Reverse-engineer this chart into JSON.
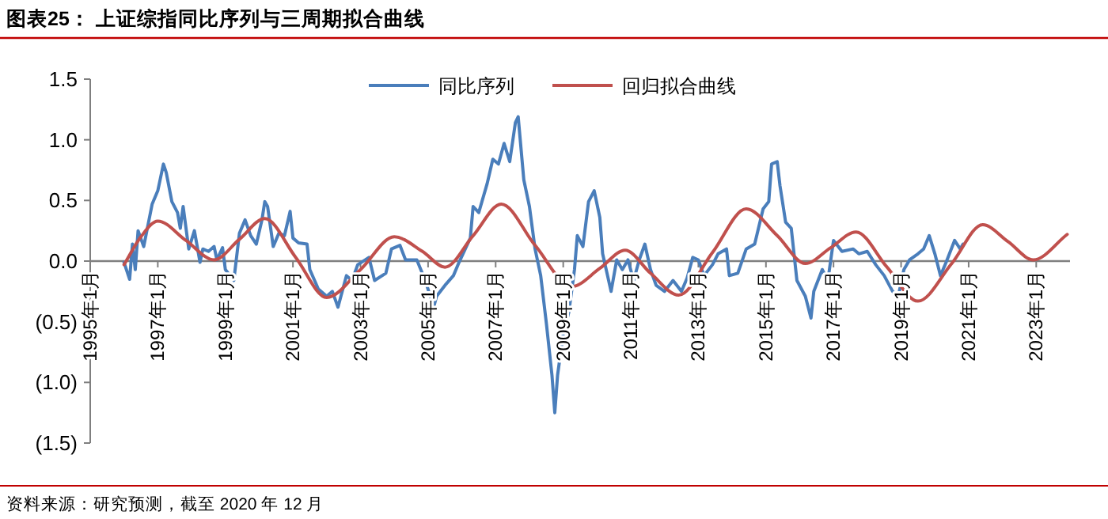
{
  "chart_data": {
    "type": "line",
    "title": "图表25：  上证综指同比序列与三周期拟合曲线",
    "annotations": [
      "资料来源：研究预测，截至 2020 年 12 月"
    ],
    "legend": "top",
    "xlim": [
      "1995-01",
      "2024-01"
    ],
    "xticks": [
      {
        "value": "1995-01",
        "label": "1995年1月"
      },
      {
        "value": "1997-01",
        "label": "1997年1月"
      },
      {
        "value": "1999-01",
        "label": "1999年1月"
      },
      {
        "value": "2001-01",
        "label": "2001年1月"
      },
      {
        "value": "2003-01",
        "label": "2003年1月"
      },
      {
        "value": "2005-01",
        "label": "2005年1月"
      },
      {
        "value": "2007-01",
        "label": "2007年1月"
      },
      {
        "value": "2009-01",
        "label": "2009年1月"
      },
      {
        "value": "2011-01",
        "label": "2011年1月"
      },
      {
        "value": "2013-01",
        "label": "2013年1月"
      },
      {
        "value": "2015-01",
        "label": "2015年1月"
      },
      {
        "value": "2017-01",
        "label": "2017年1月"
      },
      {
        "value": "2019-01",
        "label": "2019年1月"
      },
      {
        "value": "2021-01",
        "label": "2021年1月"
      },
      {
        "value": "2023-01",
        "label": "2023年1月"
      }
    ],
    "ylim": [
      -1.5,
      1.5
    ],
    "yticks": [
      {
        "value": -1.5,
        "label": "(1.5)"
      },
      {
        "value": -1.0,
        "label": "(1.0)"
      },
      {
        "value": -0.5,
        "label": "(0.5)"
      },
      {
        "value": 0,
        "label": "0.0"
      },
      {
        "value": 0.5,
        "label": "0.5"
      },
      {
        "value": 1.0,
        "label": "1.0"
      },
      {
        "value": 1.5,
        "label": "1.5"
      }
    ],
    "series": [
      {
        "name": "同比序列",
        "color": "#4a7ebb",
        "x": [
          "1996-01",
          "1996-03",
          "1996-04",
          "1996-05",
          "1996-06",
          "1996-08",
          "1996-11",
          "1997-01",
          "1997-03",
          "1997-04",
          "1997-06",
          "1997-08",
          "1997-09",
          "1997-10",
          "1997-12",
          "1998-02",
          "1998-04",
          "1998-05",
          "1998-07",
          "1998-09",
          "1998-10",
          "1998-12",
          "1999-01",
          "1999-04",
          "1999-06",
          "1999-08",
          "1999-10",
          "1999-12",
          "2000-02",
          "2000-03",
          "2000-04",
          "2000-06",
          "2000-08",
          "2000-10",
          "2000-12",
          "2001-01",
          "2001-03",
          "2001-06",
          "2001-07",
          "2001-10",
          "2002-01",
          "2002-03",
          "2002-05",
          "2002-08",
          "2002-10",
          "2002-12",
          "2003-04",
          "2003-06",
          "2003-10",
          "2003-12",
          "2004-03",
          "2004-05",
          "2004-09",
          "2004-12",
          "2005-03",
          "2005-04",
          "2005-07",
          "2005-10",
          "2005-12",
          "2006-04",
          "2006-05",
          "2006-07",
          "2006-10",
          "2006-12",
          "2007-02",
          "2007-04",
          "2007-06",
          "2007-08",
          "2007-09",
          "2007-11",
          "2008-01",
          "2008-03",
          "2008-05",
          "2008-07",
          "2008-09",
          "2008-10",
          "2008-11",
          "2009-01",
          "2009-03",
          "2009-05",
          "2009-06",
          "2009-08",
          "2009-10",
          "2009-12",
          "2010-02",
          "2010-03",
          "2010-06",
          "2010-08",
          "2010-10",
          "2010-12",
          "2011-02",
          "2011-04",
          "2011-06",
          "2011-08",
          "2011-10",
          "2012-01",
          "2012-04",
          "2012-07",
          "2012-09",
          "2012-11",
          "2013-01",
          "2013-03",
          "2013-06",
          "2013-08",
          "2013-11",
          "2013-12",
          "2014-03",
          "2014-06",
          "2014-09",
          "2014-12",
          "2015-02",
          "2015-03",
          "2015-05",
          "2015-06",
          "2015-08",
          "2015-10",
          "2015-12",
          "2016-03",
          "2016-05",
          "2016-06",
          "2016-09",
          "2016-11",
          "2017-01",
          "2017-04",
          "2017-08",
          "2017-10",
          "2018-01",
          "2018-04",
          "2018-07",
          "2018-10",
          "2018-12",
          "2019-02",
          "2019-04",
          "2019-07",
          "2019-09",
          "2019-11",
          "2020-01",
          "2020-03",
          "2020-05",
          "2020-08",
          "2020-10",
          "2020-11"
        ],
        "values": [
          -0.01,
          -0.15,
          0.14,
          -0.07,
          0.25,
          0.12,
          0.47,
          0.58,
          0.8,
          0.73,
          0.49,
          0.4,
          0.27,
          0.45,
          0.1,
          0.25,
          -0.01,
          0.1,
          0.08,
          0.12,
          0.01,
          0.11,
          -0.07,
          -0.16,
          0.23,
          0.34,
          0.21,
          0.14,
          0.34,
          0.49,
          0.45,
          0.12,
          0.23,
          0.21,
          0.41,
          0.19,
          0.15,
          0.14,
          -0.07,
          -0.23,
          -0.29,
          -0.25,
          -0.38,
          -0.12,
          -0.16,
          -0.03,
          0.03,
          -0.16,
          -0.1,
          0.1,
          0.13,
          0.01,
          0.01,
          -0.16,
          -0.38,
          -0.29,
          -0.2,
          -0.12,
          -0.01,
          0.19,
          0.45,
          0.4,
          0.64,
          0.84,
          0.8,
          0.97,
          0.82,
          1.14,
          1.19,
          0.67,
          0.45,
          0.1,
          -0.12,
          -0.51,
          -0.94,
          -1.25,
          -0.94,
          -0.6,
          -0.42,
          -0.07,
          0.21,
          0.12,
          0.49,
          0.58,
          0.36,
          0.06,
          -0.25,
          0.01,
          -0.07,
          0.01,
          -0.16,
          0.01,
          0.14,
          -0.07,
          -0.2,
          -0.25,
          -0.16,
          -0.25,
          -0.14,
          0.03,
          0.01,
          -0.12,
          -0.03,
          0.06,
          0.1,
          -0.12,
          -0.1,
          0.1,
          0.14,
          0.43,
          0.49,
          0.8,
          0.82,
          0.62,
          0.32,
          0.27,
          -0.16,
          -0.29,
          -0.47,
          -0.25,
          -0.07,
          -0.16,
          0.17,
          0.08,
          0.1,
          0.06,
          0.08,
          -0.03,
          -0.12,
          -0.25,
          -0.29,
          -0.07,
          0.01,
          0.06,
          0.1,
          0.21,
          0.06,
          -0.12,
          -0.01,
          0.17,
          0.1,
          0.14
        ]
      },
      {
        "name": "回归拟合曲线",
        "color": "#c0504d",
        "x": [
          "1996-01",
          "1996-07",
          "1997-01",
          "1997-11",
          "1998-09",
          "1999-06",
          "2000-03",
          "2001-02",
          "2002-01",
          "2003-01",
          "2004-01",
          "2004-11",
          "2005-07",
          "2006-05",
          "2007-03",
          "2008-03",
          "2009-04",
          "2010-02",
          "2010-11",
          "2011-08",
          "2012-06",
          "2013-06",
          "2014-06",
          "2015-05",
          "2016-03",
          "2016-12",
          "2017-09",
          "2018-08",
          "2019-07",
          "2020-07",
          "2021-06",
          "2022-03",
          "2022-12",
          "2023-12"
        ],
        "values": [
          -0.03,
          0.2,
          0.33,
          0.17,
          0.01,
          0.18,
          0.35,
          0.03,
          -0.3,
          -0.07,
          0.2,
          0.08,
          -0.05,
          0.21,
          0.47,
          0.13,
          -0.21,
          -0.06,
          0.09,
          -0.1,
          -0.28,
          0.07,
          0.43,
          0.21,
          -0.02,
          0.11,
          0.24,
          -0.05,
          -0.33,
          -0.02,
          0.3,
          0.16,
          0.01,
          0.22
        ]
      }
    ]
  }
}
